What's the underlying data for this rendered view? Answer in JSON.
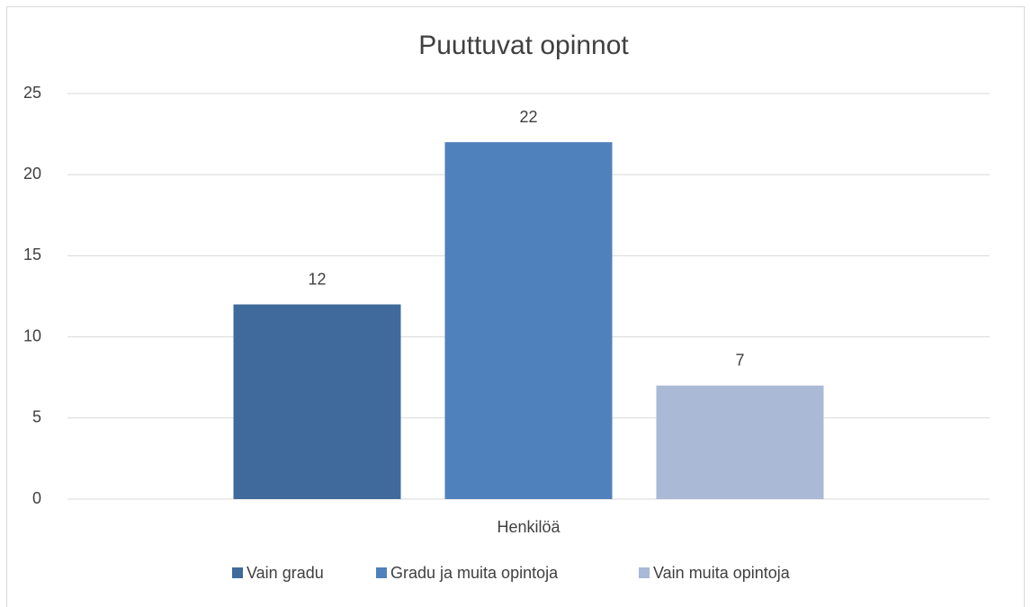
{
  "chart_data": {
    "type": "bar",
    "title": "Puuttuvat opinnot",
    "categories": [
      "Henkilöä"
    ],
    "series": [
      {
        "name": "Vain gradu",
        "color": "#3f6a9b",
        "values": [
          12
        ]
      },
      {
        "name": "Gradu ja muita opintoja",
        "color": "#4f81bd",
        "values": [
          22
        ]
      },
      {
        "name": "Vain muita opintoja",
        "color": "#a9b9d6",
        "values": [
          7
        ]
      }
    ],
    "ylim": [
      0,
      25
    ],
    "yticks": [
      0,
      5,
      10,
      15,
      20,
      25
    ],
    "grid": true,
    "legend": "bottom"
  }
}
